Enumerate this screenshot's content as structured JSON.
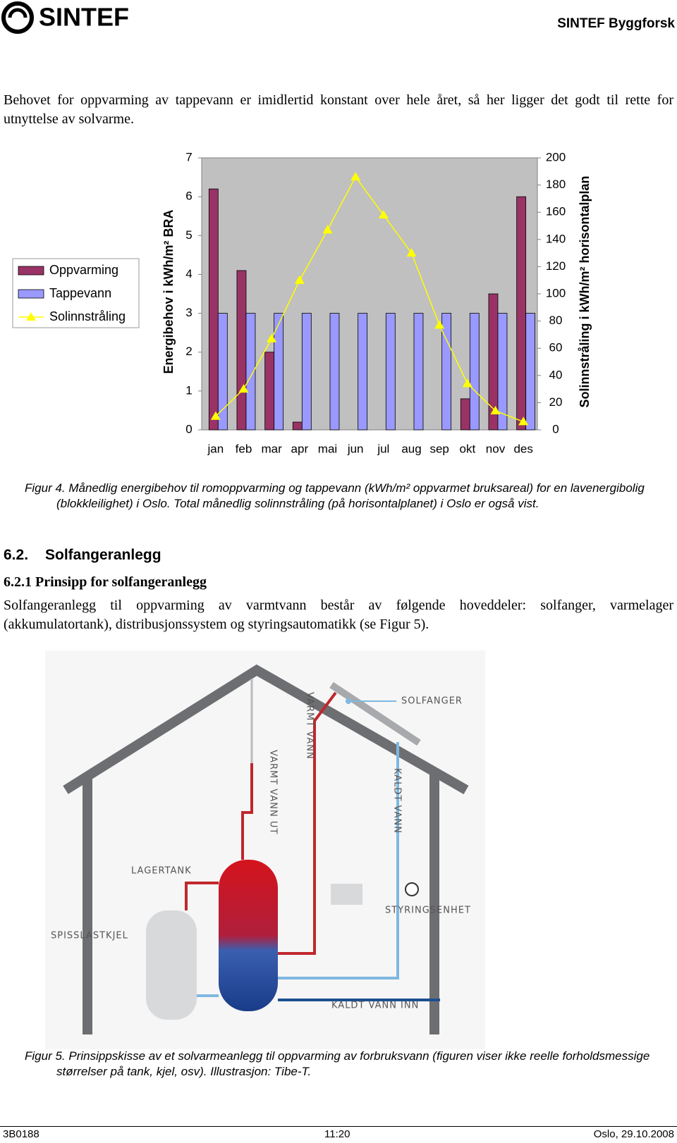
{
  "header": {
    "logo": "SINTEF",
    "unit": "SINTEF Byggforsk"
  },
  "paragraphs": [
    "Behovet for oppvarming av tappevann er imidlertid konstant over hele året, så her ligger det godt til rette for utnyttelse av solvarme.",
    "Solfangeranlegg til oppvarming av varmtvann består av følgende hoveddeler: solfanger, varmelager (akkumulatortank), distribusjonssystem og styringsautomatikk (se Figur 5)."
  ],
  "chart_data": {
    "type": "bar",
    "categories": [
      "jan",
      "feb",
      "mar",
      "apr",
      "mai",
      "jun",
      "jul",
      "aug",
      "sep",
      "okt",
      "nov",
      "des"
    ],
    "series": [
      {
        "name": "Oppvarming",
        "color": "#993366",
        "values": [
          6.2,
          4.1,
          2.0,
          0.2,
          0,
          0,
          0,
          0,
          0,
          0.8,
          3.5,
          6.0
        ]
      },
      {
        "name": "Tappevann",
        "color": "#9999ff",
        "values": [
          3,
          3,
          3,
          3,
          3,
          3,
          3,
          3,
          3,
          3,
          3,
          3
        ]
      },
      {
        "name": "Solinnstråling",
        "color": "#ffff00",
        "type": "line",
        "axis": "y2",
        "values": [
          10,
          30,
          67,
          110,
          147,
          186,
          158,
          130,
          77,
          34,
          14,
          6
        ]
      }
    ],
    "ylabel": "Energibehov i kWh/m² BRA",
    "y2label": "Solinnstråling i kWh/m² horisontalplan",
    "ylim": [
      0,
      7
    ],
    "yticks": [
      0,
      1,
      2,
      3,
      4,
      5,
      6,
      7
    ],
    "y2lim": [
      0,
      200
    ],
    "y2ticks": [
      0,
      20,
      40,
      60,
      80,
      100,
      120,
      140,
      160,
      180,
      200
    ],
    "grid": false,
    "legend": "left",
    "plot_background": "#c0c0c0"
  },
  "figure4_caption": {
    "label": "Figur 4.",
    "text": "Månedlig energibehov til romoppvarming og tappevann (kWh/m² oppvarmet bruksareal) for en lavenergibolig (blokkleilighet) i Oslo. Total månedlig solinnstråling (på horisontalplanet) i Oslo er også vist."
  },
  "section": {
    "number": "6.2.",
    "title": "Solfangeranlegg"
  },
  "subsection": {
    "number": "6.2.1",
    "title": "Prinsipp for solfangeranlegg"
  },
  "diagram": {
    "labels": [
      "SOLFANGER",
      "VARMT VANN",
      "KALDT VANN",
      "VARMT VANN UT",
      "LAGERTANK",
      "STYRINGSENHET",
      "SPISSLASTKJEL",
      "KALDT VANN INN"
    ]
  },
  "figure5_caption": {
    "label": "Figur 5.",
    "text": "Prinsippskisse av et solvarmeanlegg til oppvarming av forbruksvann (figuren viser ikke reelle forholdsmessige størrelser på tank, kjel, osv). Illustrasjon: Tibe-T."
  },
  "footer": {
    "left": "3B0188",
    "center": "11:20",
    "right": "Oslo, 29.10.2008"
  }
}
